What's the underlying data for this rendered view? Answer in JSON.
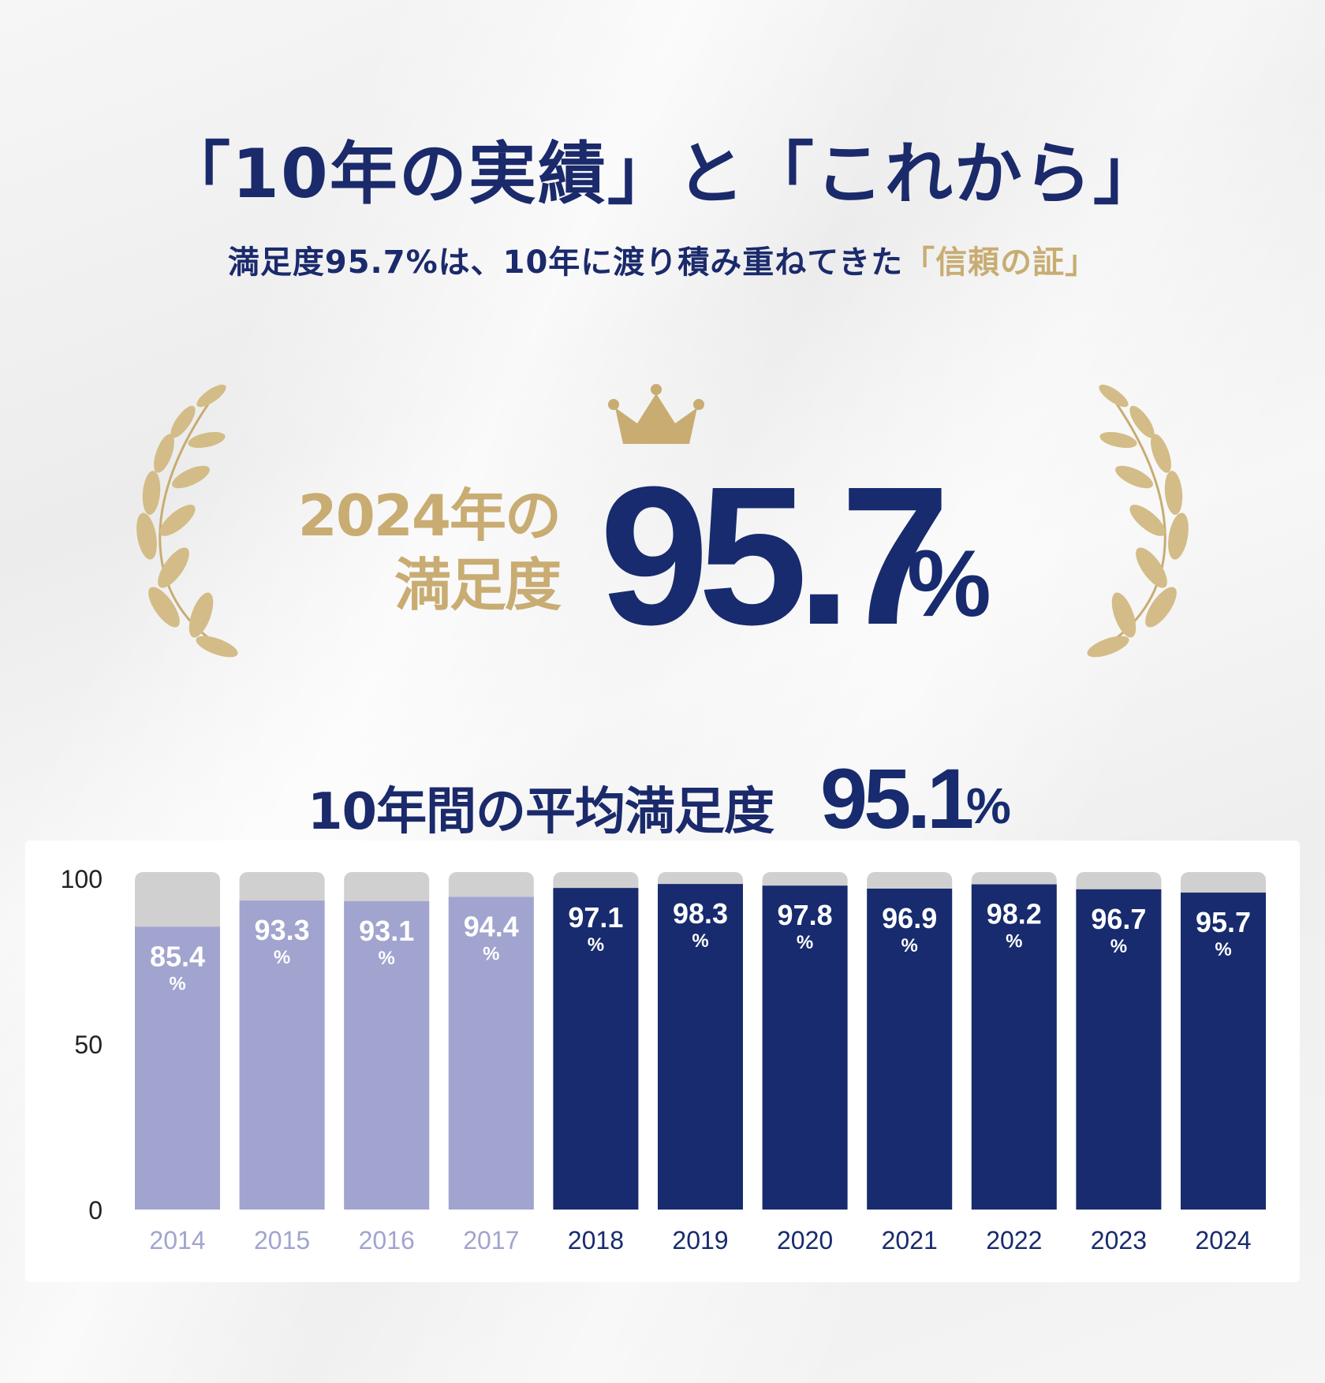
{
  "header": {
    "title": "「10年の実績」と「これから」",
    "subtitle_main": "満足度95.7%は、10年に渡り積み重ねてきた",
    "subtitle_highlight": "「信頼の証」"
  },
  "award": {
    "label_line1": "2024年の",
    "label_line2": "満足度",
    "value": "95.7",
    "unit": "%"
  },
  "average": {
    "label": "10年間の平均満足度",
    "value": "95.1",
    "unit": "%"
  },
  "colors": {
    "navy": "#172b6e",
    "lavender": "#a1a4cf",
    "gold": "#c8ac72",
    "track": "#d0d0d0"
  },
  "chart_data": {
    "type": "bar",
    "categories": [
      "2014",
      "2015",
      "2016",
      "2017",
      "2018",
      "2019",
      "2020",
      "2021",
      "2022",
      "2023",
      "2024"
    ],
    "values": [
      85.4,
      93.3,
      93.1,
      94.4,
      97.1,
      98.3,
      97.8,
      96.9,
      98.2,
      96.7,
      95.7
    ],
    "data_labels": [
      "85.4",
      "93.3",
      "93.1",
      "94.4",
      "97.1",
      "98.3",
      "97.8",
      "96.9",
      "98.2",
      "96.7",
      "95.7"
    ],
    "label_unit": "%",
    "highlight_from_index": 4,
    "y_ticks": [
      "100",
      "50",
      "0"
    ],
    "ylim": [
      0,
      100
    ],
    "grid": false,
    "title": "",
    "xlabel": "",
    "ylabel": ""
  }
}
